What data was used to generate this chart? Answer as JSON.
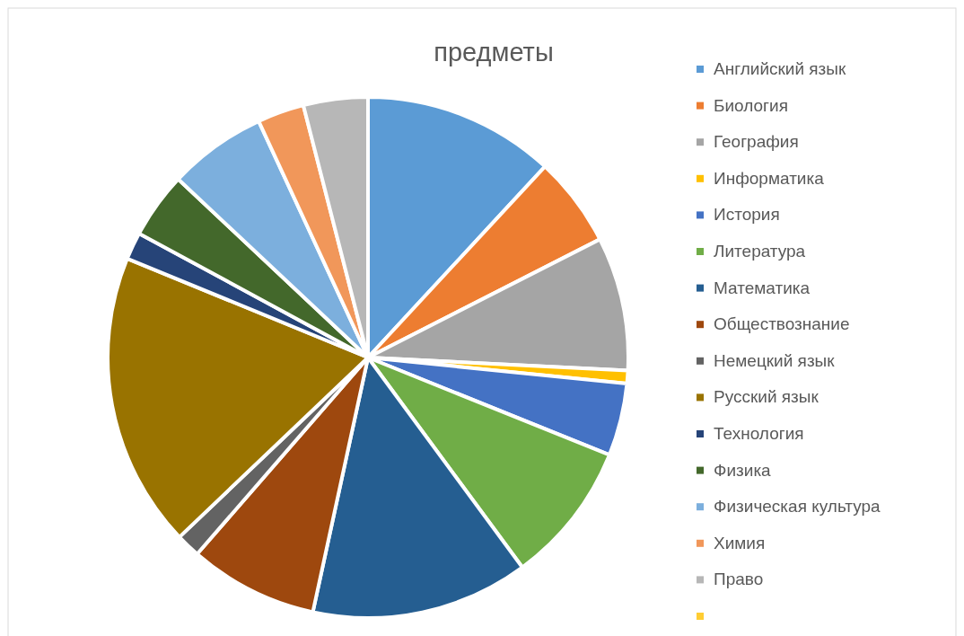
{
  "chart_data": {
    "type": "pie",
    "title": "предметы",
    "categories": [
      "Английский язык",
      "Биология",
      "География",
      "Информатика",
      "История",
      "Литература",
      "Математика",
      "Обществознание",
      "Немецкий язык",
      "Русский язык",
      "Технология",
      "Физика",
      "Физическая культура",
      "Химия",
      "Право",
      null
    ],
    "values": [
      11.9,
      5.6,
      8.3,
      0.8,
      4.5,
      8.8,
      13.5,
      8,
      1.5,
      18.3,
      1.7,
      4.1,
      6.1,
      2.9,
      4,
      0
    ],
    "colors": [
      "#5b9bd5",
      "#ed7d31",
      "#a5a5a5",
      "#ffc000",
      "#4472c4",
      "#70ad47",
      "#255e91",
      "#9e480e",
      "#636363",
      "#997300",
      "#264478",
      "#43682b",
      "#7cafdd",
      "#f1975a",
      "#b7b7b7",
      "#ffcd33"
    ],
    "legend": "right"
  }
}
